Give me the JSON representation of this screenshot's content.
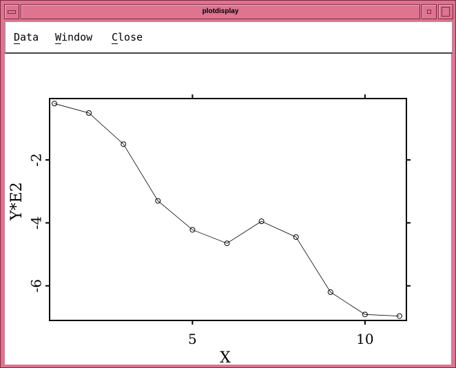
{
  "window": {
    "title": "plotdisplay",
    "frame_color": "#de7490"
  },
  "menu": {
    "items": [
      {
        "label": "Data",
        "mnemonic": "D"
      },
      {
        "label": "Window",
        "mnemonic": "W"
      },
      {
        "label": "Close",
        "mnemonic": "C"
      }
    ]
  },
  "chart_data": {
    "type": "line",
    "xlabel": "X",
    "ylabel": "Y*E2",
    "xlim": [
      0.86,
      11.2
    ],
    "ylim": [
      -7.1,
      -0.05
    ],
    "xticks": [
      5,
      10
    ],
    "xtick_labels": [
      "5",
      "10"
    ],
    "yticks": [
      -2,
      -4,
      -6
    ],
    "ytick_labels": [
      "-2",
      "-4",
      "-6"
    ],
    "marker": "open-circle",
    "grid": false,
    "series": [
      {
        "x": [
          1,
          2,
          3,
          4,
          5,
          6,
          7,
          8,
          9,
          10,
          11
        ],
        "y": [
          -0.21,
          -0.51,
          -1.5,
          -3.3,
          -4.22,
          -4.65,
          -3.95,
          -4.45,
          -6.2,
          -6.91,
          -6.96
        ]
      }
    ]
  }
}
